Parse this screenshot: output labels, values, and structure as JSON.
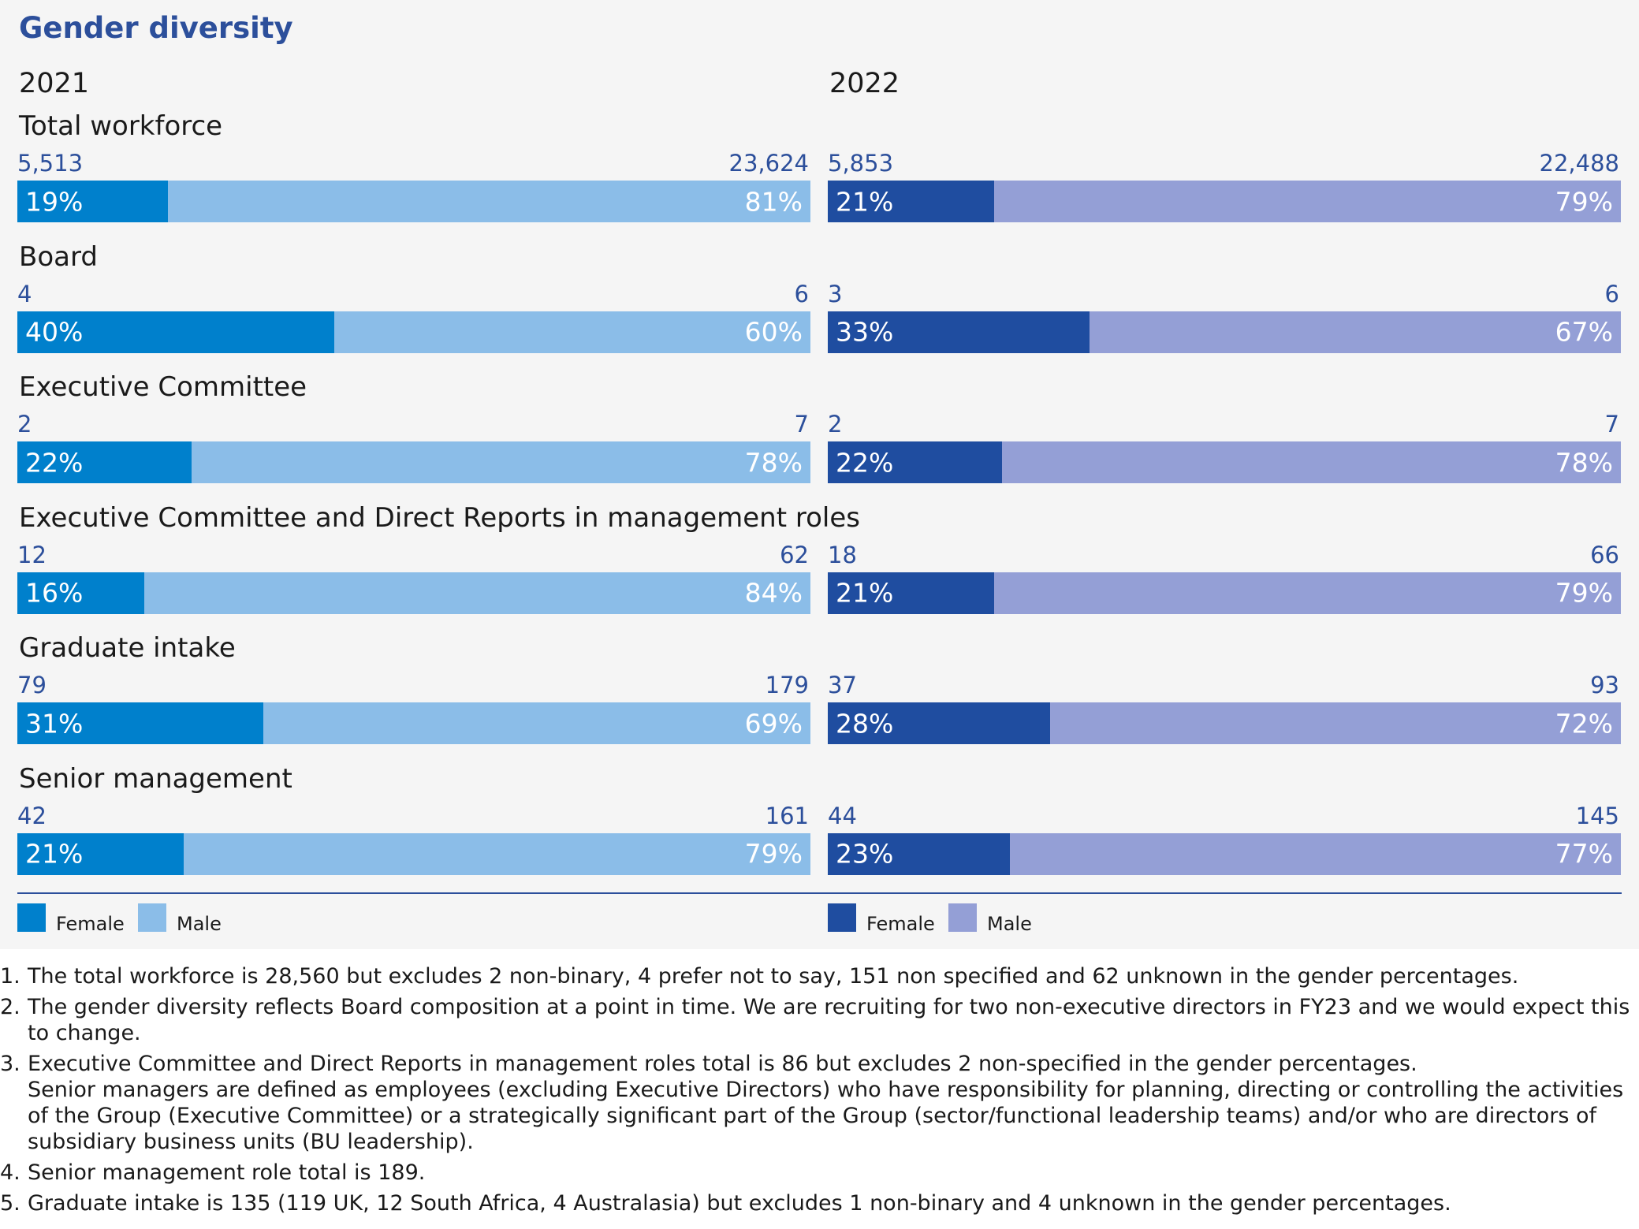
{
  "title": "Gender diversity",
  "colors": {
    "female_2021": "#0080cc",
    "male_2021": "#8bbde8",
    "female_2022": "#1f4da0",
    "male_2022": "#949fd6"
  },
  "chart_data": {
    "type": "bar",
    "stacked": true,
    "orientation": "horizontal",
    "title": "Gender diversity",
    "panels": [
      {
        "year": "2021",
        "legend": [
          "Female",
          "Male"
        ],
        "categories": [
          {
            "label": "Total workforce",
            "female_count": "5,513",
            "male_count": "23,624",
            "female_pct": 19,
            "male_pct": 81
          },
          {
            "label": "Board",
            "female_count": "4",
            "male_count": "6",
            "female_pct": 40,
            "male_pct": 60
          },
          {
            "label": "Executive Committee",
            "female_count": "2",
            "male_count": "7",
            "female_pct": 22,
            "male_pct": 78
          },
          {
            "label": "Executive Committee and Direct Reports in management roles",
            "female_count": "12",
            "male_count": "62",
            "female_pct": 16,
            "male_pct": 84
          },
          {
            "label": "Graduate intake",
            "female_count": "79",
            "male_count": "179",
            "female_pct": 31,
            "male_pct": 69
          },
          {
            "label": "Senior management",
            "female_count": "42",
            "male_count": "161",
            "female_pct": 21,
            "male_pct": 79
          }
        ]
      },
      {
        "year": "2022",
        "legend": [
          "Female",
          "Male"
        ],
        "categories": [
          {
            "label": "Total workforce",
            "female_count": "5,853",
            "male_count": "22,488",
            "female_pct": 21,
            "male_pct": 79
          },
          {
            "label": "Board",
            "female_count": "3",
            "male_count": "6",
            "female_pct": 33,
            "male_pct": 67
          },
          {
            "label": "Executive Committee",
            "female_count": "2",
            "male_count": "7",
            "female_pct": 22,
            "male_pct": 78
          },
          {
            "label": "Executive Committee and Direct Reports in management roles",
            "female_count": "18",
            "male_count": "66",
            "female_pct": 21,
            "male_pct": 79
          },
          {
            "label": "Graduate intake",
            "female_count": "37",
            "male_count": "93",
            "female_pct": 28,
            "male_pct": 72
          },
          {
            "label": "Senior management",
            "female_count": "44",
            "male_count": "145",
            "female_pct": 23,
            "male_pct": 77
          }
        ]
      }
    ]
  },
  "footnotes": [
    {
      "num": "1.",
      "lines": [
        "The total workforce is 28,560 but excludes 2 non-binary, 4 prefer not to say, 151 non specified and 62 unknown in the gender percentages."
      ]
    },
    {
      "num": "2.",
      "lines": [
        "The gender diversity reflects Board composition at a point in time. We are recruiting for two non-executive directors in FY23 and we would expect this to change."
      ]
    },
    {
      "num": "3.",
      "lines": [
        "Executive Committee and Direct Reports in management roles total is 86 but excludes 2 non-specified in the gender percentages.",
        "Senior managers are defined as employees (excluding Executive Directors) who have responsibility for planning, directing or controlling the activities of the Group (Executive Committee) or a strategically significant part of the Group (sector/functional leadership teams) and/or who are directors of subsidiary business units (BU leadership)."
      ]
    },
    {
      "num": "4.",
      "lines": [
        "Senior management role total is 189."
      ]
    },
    {
      "num": "5.",
      "lines": [
        "Graduate intake is 135 (119 UK, 12 South Africa, 4 Australasia) but excludes 1 non-binary and 4 unknown in the gender percentages."
      ]
    }
  ]
}
